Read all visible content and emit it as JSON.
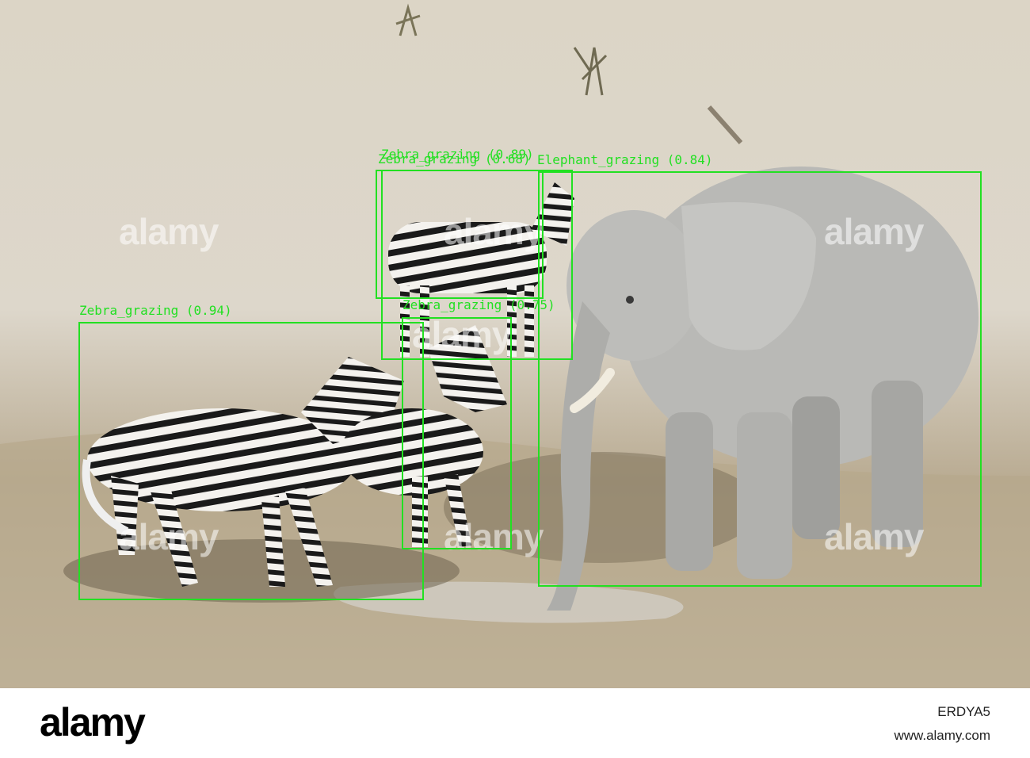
{
  "detections": [
    {
      "label": "Zebra_grazing (0.94)"
    },
    {
      "label": "Zebra_grazing (0.75)"
    },
    {
      "label": "Zebra_grazing (0.68)"
    },
    {
      "label": "Zebra_grazing (0.89)"
    },
    {
      "label": "Elephant_grazing (0.84)"
    }
  ],
  "watermark": "alamy",
  "footer": {
    "logo": "alamy",
    "image_id": "ERDYA5",
    "url": "www.alamy.com"
  },
  "colors": {
    "box": "#22e022",
    "ground": "#d8d1c2"
  }
}
